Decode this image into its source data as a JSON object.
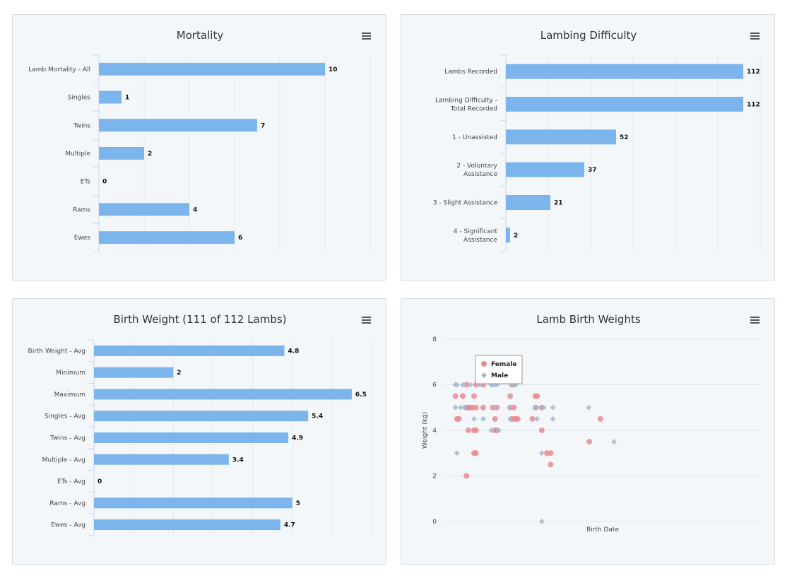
{
  "chart_data": [
    {
      "type": "bar",
      "orientation": "horizontal",
      "title": "Mortality",
      "categories": [
        "Lamb Mortality - All",
        "Singles",
        "Twins",
        "Multiple",
        "ETs",
        "Rams",
        "Ewes"
      ],
      "values": [
        10,
        1,
        7,
        2,
        0,
        4,
        6
      ],
      "xlim": [
        0,
        12
      ],
      "bar_color": "#7cb5ec",
      "grid": true,
      "legend": "none"
    },
    {
      "type": "bar",
      "orientation": "horizontal",
      "title": "Lambing Difficulty",
      "categories": [
        "Lambs Recorded",
        "Lambing Difficulty - Total Recorded",
        "1 - Unassisted",
        "2 - Voluntary Assistance",
        "3 - Slight Assistance",
        "4 - Significant Assistance"
      ],
      "values": [
        112,
        112,
        52,
        37,
        21,
        2
      ],
      "xlim": [
        0,
        120
      ],
      "bar_color": "#7cb5ec",
      "grid": true,
      "legend": "none"
    },
    {
      "type": "bar",
      "orientation": "horizontal",
      "title": "Birth Weight (111 of 112 Lambs)",
      "categories": [
        "Birth Weight - Avg",
        "Minimum",
        "Maximum",
        "Singles - Avg",
        "Twins - Avg",
        "Multiple - Avg",
        "ETs - Avg",
        "Rams - Avg",
        "Ewes - Avg"
      ],
      "values": [
        4.8,
        2,
        6.5,
        5.4,
        4.9,
        3.4,
        0,
        5,
        4.7
      ],
      "xlim": [
        0,
        7
      ],
      "bar_color": "#7cb5ec",
      "grid": true,
      "legend": "none"
    },
    {
      "type": "scatter",
      "title": "Lamb Birth Weights",
      "xlabel": "Birth Date",
      "ylabel": "Weight (kg)",
      "xlim": [
        0,
        100
      ],
      "ylim": [
        0,
        8
      ],
      "yticks": [
        0,
        2,
        4,
        6,
        8
      ],
      "grid": true,
      "legend": "top-left",
      "series": [
        {
          "name": "Female",
          "color": "#e88c8e",
          "marker": "circle",
          "points": [
            [
              3.7,
              5.5
            ],
            [
              4.2,
              4.5
            ],
            [
              4.8,
              4.5
            ],
            [
              6,
              5.5
            ],
            [
              7.2,
              6
            ],
            [
              7.2,
              5
            ],
            [
              7.8,
              5
            ],
            [
              7.8,
              4
            ],
            [
              8.4,
              5
            ],
            [
              9,
              5
            ],
            [
              9.6,
              5.5
            ],
            [
              9.6,
              4
            ],
            [
              9.6,
              3
            ],
            [
              10.2,
              6
            ],
            [
              10.2,
              5
            ],
            [
              10.2,
              4
            ],
            [
              10.2,
              3
            ],
            [
              7.2,
              2
            ],
            [
              12.5,
              6
            ],
            [
              12.5,
              5
            ],
            [
              15.5,
              5
            ],
            [
              16.2,
              4.5
            ],
            [
              16.2,
              4
            ],
            [
              16.8,
              5
            ],
            [
              16.8,
              4
            ],
            [
              21,
              5.5
            ],
            [
              21,
              5
            ],
            [
              21.5,
              6
            ],
            [
              21.5,
              4.5
            ],
            [
              22.2,
              6
            ],
            [
              22.2,
              5
            ],
            [
              22.2,
              4.5
            ],
            [
              22.8,
              4.5
            ],
            [
              23.4,
              4.5
            ],
            [
              28,
              4.5
            ],
            [
              29,
              5.5
            ],
            [
              29,
              5
            ],
            [
              29.5,
              5.5
            ],
            [
              31,
              5
            ],
            [
              31,
              4
            ],
            [
              32.6,
              3
            ],
            [
              33.8,
              3
            ],
            [
              33.8,
              2.5
            ],
            [
              46,
              3.5
            ],
            [
              49.5,
              4.5
            ]
          ]
        },
        {
          "name": "Male",
          "color": "#a4b8d4",
          "marker": "diamond",
          "points": [
            [
              3.7,
              6
            ],
            [
              3.7,
              5
            ],
            [
              4.2,
              6
            ],
            [
              4.2,
              3
            ],
            [
              5.4,
              5
            ],
            [
              6,
              6
            ],
            [
              6.6,
              5
            ],
            [
              8.4,
              6
            ],
            [
              9.6,
              4.5
            ],
            [
              11.4,
              6
            ],
            [
              12.5,
              4.5
            ],
            [
              15,
              6
            ],
            [
              15,
              4
            ],
            [
              15.5,
              6
            ],
            [
              16.2,
              6
            ],
            [
              16.2,
              5
            ],
            [
              16.8,
              6
            ],
            [
              17.4,
              4
            ],
            [
              21,
              5
            ],
            [
              21,
              4.5
            ],
            [
              21.5,
              6
            ],
            [
              22.8,
              6
            ],
            [
              29,
              5
            ],
            [
              29.5,
              5
            ],
            [
              29.5,
              4.5
            ],
            [
              31,
              3
            ],
            [
              31,
              0
            ],
            [
              31.6,
              5
            ],
            [
              34.5,
              5
            ],
            [
              34.5,
              4.5
            ],
            [
              45.8,
              5
            ],
            [
              53.8,
              3.5
            ]
          ]
        }
      ]
    }
  ]
}
